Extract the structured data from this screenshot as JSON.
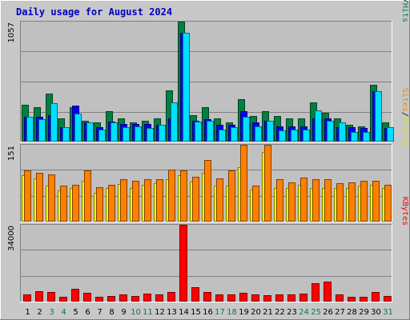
{
  "title": "Daily usage for August 2024",
  "colors": {
    "frame_bg": "#c8c8c8",
    "plot_bg": "#c0c0c0",
    "title": "#0000c0",
    "hits": "#008040",
    "files": "#0000ff",
    "pages": "#00e0ff",
    "visits": "#ffff00",
    "sites": "#ff8000",
    "kbytes": "#ff0000",
    "weekend_label": "#008040",
    "weekday_label": "#000000"
  },
  "chart_data": [
    {
      "type": "bar",
      "name": "hits-files-pages",
      "ymax_label": "1057",
      "ylim": [
        0,
        1057
      ],
      "right_label_parts": [
        {
          "text": "Pages",
          "color": "#00c0e0"
        },
        {
          "text": "/",
          "color": "#000000"
        },
        {
          "text": "Files",
          "color": "#0000ff"
        },
        {
          "text": "/",
          "color": "#000000"
        },
        {
          "text": "Hits",
          "color": "#008040"
        }
      ],
      "categories": [
        "1",
        "2",
        "3",
        "4",
        "5",
        "6",
        "7",
        "8",
        "9",
        "10",
        "11",
        "12",
        "13",
        "14",
        "15",
        "16",
        "17",
        "18",
        "19",
        "20",
        "21",
        "22",
        "23",
        "24",
        "25",
        "26",
        "27",
        "28",
        "29",
        "30",
        "31"
      ],
      "series": [
        {
          "name": "Hits",
          "values": [
            320,
            300,
            420,
            200,
            300,
            180,
            160,
            260,
            200,
            160,
            180,
            200,
            450,
            1057,
            230,
            300,
            200,
            160,
            370,
            220,
            260,
            220,
            200,
            200,
            340,
            250,
            200,
            140,
            130,
            500,
            160
          ]
        },
        {
          "name": "Files",
          "values": [
            210,
            210,
            230,
            120,
            310,
            160,
            120,
            170,
            150,
            150,
            150,
            140,
            200,
            960,
            180,
            190,
            140,
            140,
            260,
            160,
            180,
            130,
            130,
            130,
            200,
            200,
            120,
            120,
            110,
            440,
            110
          ]
        },
        {
          "name": "Pages",
          "values": [
            210,
            190,
            330,
            120,
            240,
            160,
            100,
            160,
            120,
            130,
            110,
            140,
            340,
            960,
            170,
            180,
            100,
            120,
            210,
            130,
            180,
            90,
            100,
            100,
            270,
            180,
            160,
            80,
            80,
            440,
            120
          ]
        }
      ]
    },
    {
      "type": "bar",
      "name": "sites-visits",
      "ymax_label": "151",
      "ylim": [
        0,
        151
      ],
      "right_label_parts": [
        {
          "text": "Sites",
          "color": "#ff8000"
        },
        {
          "text": "/",
          "color": "#000000"
        },
        {
          "text": "Visits",
          "color": "#e0e000"
        }
      ],
      "categories": [
        "1",
        "2",
        "3",
        "4",
        "5",
        "6",
        "7",
        "8",
        "9",
        "10",
        "11",
        "12",
        "13",
        "14",
        "15",
        "16",
        "17",
        "18",
        "19",
        "20",
        "21",
        "22",
        "23",
        "24",
        "25",
        "26",
        "27",
        "28",
        "29",
        "30",
        "31"
      ],
      "series": [
        {
          "name": "Visits",
          "values": [
            90,
            85,
            70,
            60,
            65,
            80,
            56,
            65,
            73,
            65,
            72,
            75,
            82,
            90,
            78,
            95,
            70,
            70,
            106,
            62,
            136,
            65,
            65,
            72,
            65,
            65,
            65,
            65,
            70,
            72,
            65
          ]
        },
        {
          "name": "Sites",
          "values": [
            100,
            95,
            92,
            70,
            72,
            100,
            67,
            72,
            82,
            80,
            82,
            82,
            101,
            100,
            88,
            121,
            85,
            100,
            151,
            70,
            151,
            82,
            76,
            86,
            82,
            82,
            75,
            76,
            80,
            80,
            72
          ]
        }
      ]
    },
    {
      "type": "bar",
      "name": "kbytes",
      "ymax_label": "34000",
      "ylim": [
        0,
        34000
      ],
      "right_label_parts": [
        {
          "text": "KBytes",
          "color": "#ff0000"
        }
      ],
      "categories": [
        "1",
        "2",
        "3",
        "4",
        "5",
        "6",
        "7",
        "8",
        "9",
        "10",
        "11",
        "12",
        "13",
        "14",
        "15",
        "16",
        "17",
        "18",
        "19",
        "20",
        "21",
        "22",
        "23",
        "24",
        "25",
        "26",
        "27",
        "28",
        "29",
        "30",
        "31"
      ],
      "series": [
        {
          "name": "KBytes",
          "values": [
            3000,
            4300,
            3800,
            1800,
            5200,
            3400,
            1800,
            2100,
            2800,
            2100,
            3100,
            2700,
            4000,
            34000,
            6200,
            3800,
            2700,
            2800,
            3600,
            2700,
            2600,
            2700,
            2700,
            3100,
            7800,
            8600,
            2900,
            1800,
            1800,
            4100,
            2100
          ]
        }
      ]
    }
  ],
  "days": [
    "1",
    "2",
    "3",
    "4",
    "5",
    "6",
    "7",
    "8",
    "9",
    "10",
    "11",
    "12",
    "13",
    "14",
    "15",
    "16",
    "17",
    "18",
    "19",
    "20",
    "21",
    "22",
    "23",
    "24",
    "25",
    "26",
    "27",
    "28",
    "29",
    "30",
    "31"
  ],
  "weekend_days": [
    "3",
    "4",
    "10",
    "11",
    "17",
    "18",
    "24",
    "25",
    "31"
  ]
}
